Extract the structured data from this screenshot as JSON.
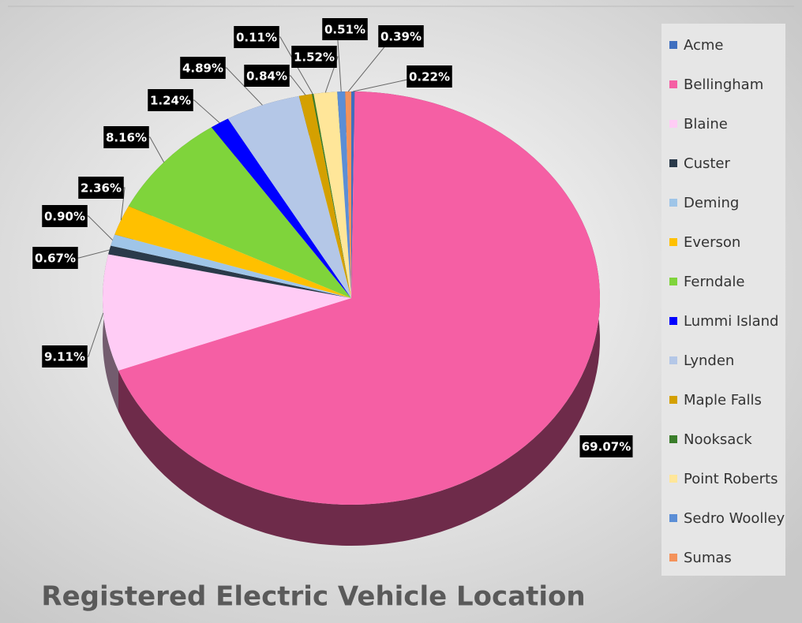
{
  "chart_data": {
    "type": "pie",
    "title": "Registered Electric Vehicle Location",
    "categories": [
      "Acme",
      "Bellingham",
      "Blaine",
      "Custer",
      "Deming",
      "Everson",
      "Ferndale",
      "Lummi Island",
      "Lynden",
      "Maple Falls",
      "Nooksack",
      "Point Roberts",
      "Sedro Woolley",
      "Sumas"
    ],
    "values": [
      0.22,
      69.07,
      9.11,
      0.67,
      0.9,
      2.36,
      8.16,
      1.24,
      4.89,
      0.84,
      0.11,
      1.52,
      0.51,
      0.39
    ],
    "value_labels": [
      "0.22%",
      "69.07%",
      "9.11%",
      "0.67%",
      "0.90%",
      "2.36%",
      "8.16%",
      "1.24%",
      "4.89%",
      "0.84%",
      "0.11%",
      "1.52%",
      "0.51%",
      "0.39%"
    ],
    "colors": [
      "#3f6fbf",
      "#f55fa4",
      "#ffccf5",
      "#2a3a4a",
      "#9fc5e8",
      "#ffc000",
      "#7fd43b",
      "#0000ff",
      "#b4c7e7",
      "#d4a000",
      "#3a7d2a",
      "#ffe699",
      "#5b8ed6",
      "#f4925a"
    ],
    "legend": "right"
  }
}
